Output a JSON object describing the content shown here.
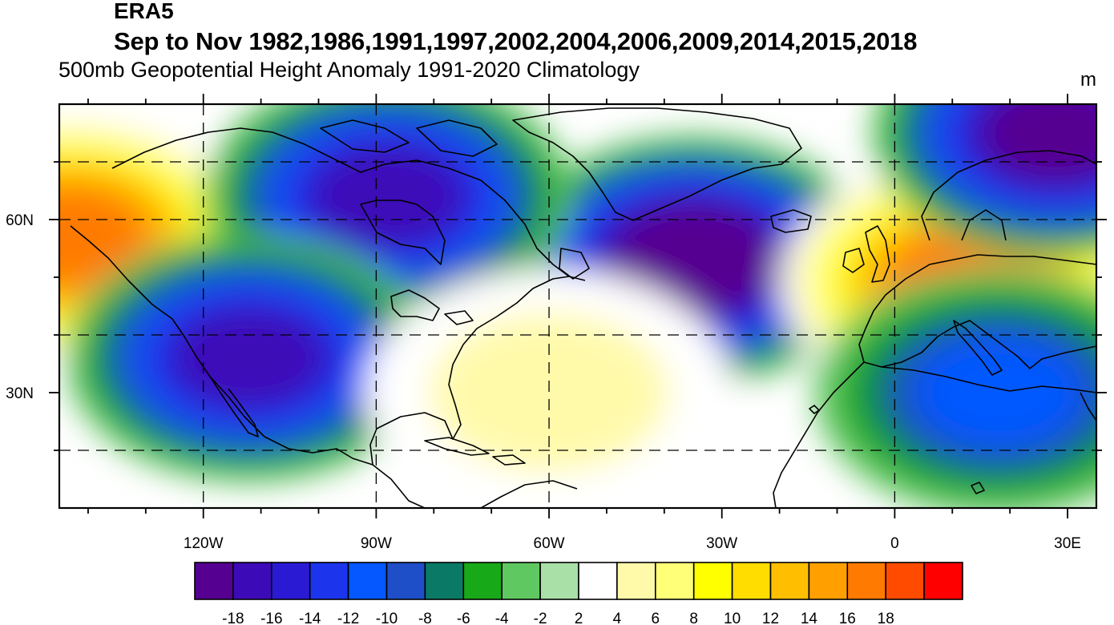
{
  "header": {
    "dataset": "ERA5",
    "period": "Sep to Nov 1982,1986,1991,1997,2002,2004,2006,2009,2014,2015,2018",
    "variable": "500mb Geopotential Height Anomaly  1991-2020 Climatology",
    "units": "m"
  },
  "map": {
    "lon_range": [
      -145,
      35
    ],
    "lat_range": [
      10,
      80
    ],
    "lon_ticks": [
      {
        "value": -120,
        "label": "120W"
      },
      {
        "value": -90,
        "label": "90W"
      },
      {
        "value": -60,
        "label": "60W"
      },
      {
        "value": -30,
        "label": "30W"
      },
      {
        "value": 0,
        "label": "0"
      },
      {
        "value": 30,
        "label": "30E"
      }
    ],
    "lat_ticks": [
      {
        "value": 60,
        "label": "60N"
      },
      {
        "value": 30,
        "label": "30N"
      }
    ],
    "grid_lat": [
      70,
      60,
      40,
      20
    ],
    "grid_lon": [
      -120,
      -90,
      -60,
      0
    ],
    "anomaly_centers": [
      {
        "lon": -143,
        "lat": 57,
        "peak": 15
      },
      {
        "lon": -35,
        "lat": 53,
        "peak": -20
      },
      {
        "lon": -88,
        "lat": 64,
        "peak": -16
      },
      {
        "lon": -112,
        "lat": 36,
        "peak": -16
      },
      {
        "lon": 12,
        "lat": 49,
        "peak": 16
      },
      {
        "lon": 28,
        "lat": 75,
        "peak": -18
      },
      {
        "lon": 18,
        "lat": 30,
        "peak": -10
      },
      {
        "lon": -60,
        "lat": 30,
        "peak": 3
      }
    ]
  },
  "colorbar": {
    "colors": [
      "#560091",
      "#3d0ab8",
      "#2b1ad4",
      "#1c35ec",
      "#0558ff",
      "#1e4fc8",
      "#0a7a66",
      "#18a918",
      "#60c860",
      "#a8e0a8",
      "#ffffff",
      "#fffaaa",
      "#ffff78",
      "#ffff00",
      "#ffdd00",
      "#ffbf00",
      "#ffa000",
      "#ff7a00",
      "#ff4b00",
      "#ff0000"
    ],
    "labels": [
      "-18",
      "-16",
      "-14",
      "-12",
      "-10",
      "-8",
      "-6",
      "-4",
      "-2",
      "2",
      "4",
      "6",
      "8",
      "10",
      "12",
      "14",
      "16",
      "18"
    ]
  }
}
